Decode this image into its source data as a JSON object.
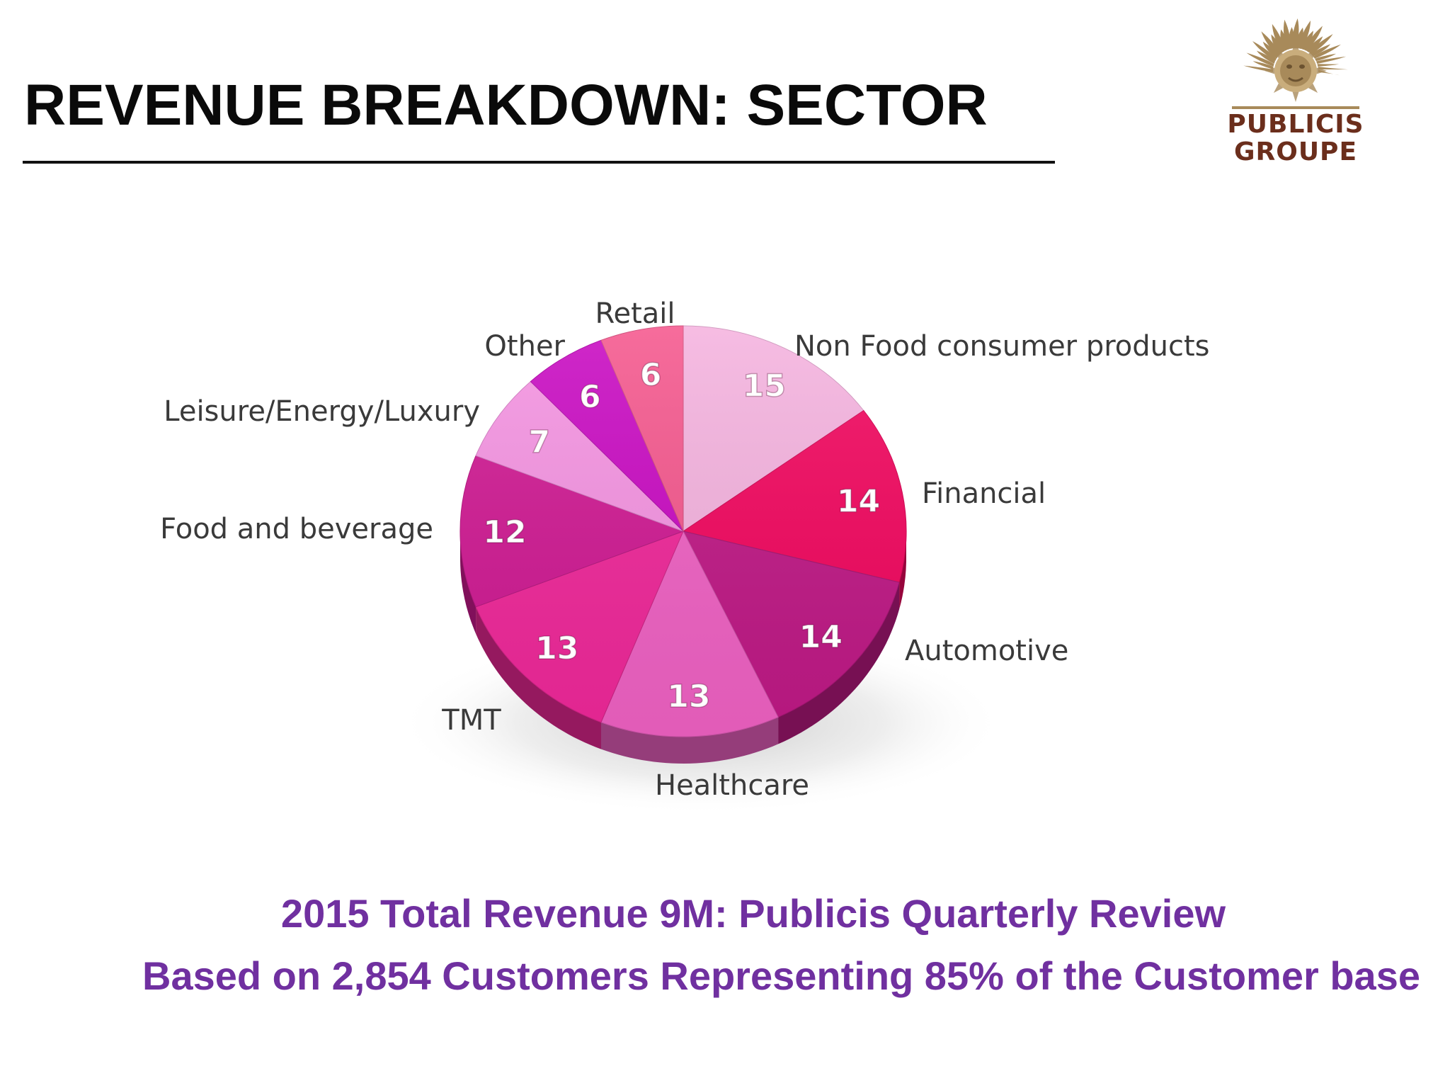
{
  "slide": {
    "title": "REVENUE BREAKDOWN: SECTOR"
  },
  "logo": {
    "line1": "PUBLICIS",
    "line2": "GROUPE",
    "color": "#6b2e1c",
    "mark_color": "#a88a5a"
  },
  "footer": {
    "line1": "2015 Total Revenue 9M: Publicis Quarterly Review",
    "line2": "Based on 2,854 Customers Representing 85% of the Customer base",
    "color": "#7030a0"
  },
  "chart_data": {
    "type": "pie",
    "title": "",
    "slices": [
      {
        "label": "Non Food consumer products",
        "value": 15,
        "color": "#f5b3df"
      },
      {
        "label": "Financial",
        "value": 14,
        "color": "#f2075f"
      },
      {
        "label": "Automotive",
        "value": 14,
        "color": "#c01986"
      },
      {
        "label": "Healthcare",
        "value": 13,
        "color": "#f062c4"
      },
      {
        "label": "TMT",
        "value": 13,
        "color": "#f0289a"
      },
      {
        "label": "Food and beverage",
        "value": 12,
        "color": "#d01a93"
      },
      {
        "label": "Leisure/Energy/Luxury",
        "value": 7,
        "color": "#f594e2"
      },
      {
        "label": "Other",
        "value": 6,
        "color": "#c90bc2"
      },
      {
        "label": "Retail",
        "value": 6,
        "color": "#f5588e"
      }
    ],
    "start_angle_deg": 0,
    "direction": "clockwise",
    "style": "3d"
  }
}
